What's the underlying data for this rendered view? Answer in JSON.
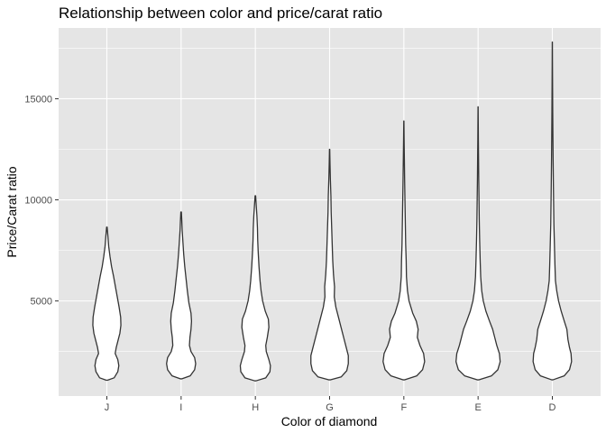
{
  "chart_data": {
    "type": "violin",
    "title": "Relationship between color and price/carat ratio",
    "xlabel": "Color of diamond",
    "ylabel": "Price/Carat ratio",
    "categories": [
      "J",
      "I",
      "H",
      "G",
      "F",
      "E",
      "D"
    ],
    "yticks": [
      5000,
      10000,
      15000
    ],
    "ylim": [
      300,
      18500
    ],
    "grid": true,
    "background": "#e5e5e5",
    "grid_color": "#ffffff",
    "violins": [
      {
        "category": "J",
        "min": 1080,
        "max": 8650,
        "profile": [
          [
            1080,
            0.02
          ],
          [
            1200,
            0.28
          ],
          [
            1500,
            0.42
          ],
          [
            1800,
            0.46
          ],
          [
            2100,
            0.42
          ],
          [
            2400,
            0.32
          ],
          [
            2700,
            0.36
          ],
          [
            3000,
            0.42
          ],
          [
            3400,
            0.5
          ],
          [
            3800,
            0.54
          ],
          [
            4200,
            0.53
          ],
          [
            4700,
            0.47
          ],
          [
            5200,
            0.4
          ],
          [
            5700,
            0.33
          ],
          [
            6200,
            0.26
          ],
          [
            6700,
            0.18
          ],
          [
            7200,
            0.12
          ],
          [
            7700,
            0.07
          ],
          [
            8200,
            0.04
          ],
          [
            8650,
            0.01
          ]
        ]
      },
      {
        "category": "I",
        "min": 1150,
        "max": 9400,
        "profile": [
          [
            1150,
            0.02
          ],
          [
            1300,
            0.35
          ],
          [
            1600,
            0.52
          ],
          [
            1900,
            0.56
          ],
          [
            2200,
            0.52
          ],
          [
            2500,
            0.38
          ],
          [
            2800,
            0.32
          ],
          [
            3200,
            0.34
          ],
          [
            3600,
            0.38
          ],
          [
            4000,
            0.4
          ],
          [
            4400,
            0.38
          ],
          [
            4900,
            0.3
          ],
          [
            5500,
            0.24
          ],
          [
            6100,
            0.19
          ],
          [
            6700,
            0.14
          ],
          [
            7300,
            0.1
          ],
          [
            7900,
            0.07
          ],
          [
            8500,
            0.04
          ],
          [
            9000,
            0.025
          ],
          [
            9400,
            0.01
          ]
        ]
      },
      {
        "category": "H",
        "min": 1050,
        "max": 10200,
        "profile": [
          [
            1050,
            0.02
          ],
          [
            1200,
            0.4
          ],
          [
            1500,
            0.56
          ],
          [
            1800,
            0.58
          ],
          [
            2100,
            0.52
          ],
          [
            2500,
            0.42
          ],
          [
            2800,
            0.4
          ],
          [
            3200,
            0.46
          ],
          [
            3700,
            0.52
          ],
          [
            4100,
            0.5
          ],
          [
            4500,
            0.38
          ],
          [
            5000,
            0.28
          ],
          [
            5500,
            0.22
          ],
          [
            6000,
            0.18
          ],
          [
            6700,
            0.14
          ],
          [
            7400,
            0.11
          ],
          [
            8000,
            0.09
          ],
          [
            8600,
            0.08
          ],
          [
            9200,
            0.06
          ],
          [
            9600,
            0.04
          ],
          [
            10000,
            0.02
          ],
          [
            10200,
            0.01
          ]
        ]
      },
      {
        "category": "G",
        "min": 1100,
        "max": 12500,
        "profile": [
          [
            1100,
            0.02
          ],
          [
            1250,
            0.45
          ],
          [
            1550,
            0.66
          ],
          [
            1900,
            0.72
          ],
          [
            2300,
            0.72
          ],
          [
            2700,
            0.64
          ],
          [
            3200,
            0.54
          ],
          [
            3700,
            0.44
          ],
          [
            4200,
            0.34
          ],
          [
            4700,
            0.24
          ],
          [
            5200,
            0.18
          ],
          [
            5700,
            0.19
          ],
          [
            6300,
            0.15
          ],
          [
            7000,
            0.12
          ],
          [
            7800,
            0.1
          ],
          [
            8600,
            0.08
          ],
          [
            9400,
            0.06
          ],
          [
            10200,
            0.05
          ],
          [
            11000,
            0.03
          ],
          [
            11800,
            0.015
          ],
          [
            12500,
            0.005
          ]
        ]
      },
      {
        "category": "F",
        "min": 1100,
        "max": 13900,
        "profile": [
          [
            1100,
            0.02
          ],
          [
            1300,
            0.5
          ],
          [
            1600,
            0.72
          ],
          [
            2000,
            0.8
          ],
          [
            2400,
            0.76
          ],
          [
            2800,
            0.62
          ],
          [
            3200,
            0.52
          ],
          [
            3600,
            0.55
          ],
          [
            4000,
            0.48
          ],
          [
            4400,
            0.34
          ],
          [
            5000,
            0.2
          ],
          [
            5500,
            0.14
          ],
          [
            6200,
            0.1
          ],
          [
            7000,
            0.09
          ],
          [
            7800,
            0.07
          ],
          [
            8600,
            0.06
          ],
          [
            9400,
            0.05
          ],
          [
            10200,
            0.04
          ],
          [
            11000,
            0.03
          ],
          [
            12000,
            0.02
          ],
          [
            13000,
            0.01
          ],
          [
            13900,
            0.003
          ]
        ]
      },
      {
        "category": "E",
        "min": 1100,
        "max": 14600,
        "profile": [
          [
            1100,
            0.02
          ],
          [
            1300,
            0.52
          ],
          [
            1600,
            0.76
          ],
          [
            2000,
            0.85
          ],
          [
            2400,
            0.82
          ],
          [
            2800,
            0.72
          ],
          [
            3200,
            0.64
          ],
          [
            3600,
            0.56
          ],
          [
            4000,
            0.44
          ],
          [
            4500,
            0.3
          ],
          [
            5000,
            0.2
          ],
          [
            5500,
            0.14
          ],
          [
            6200,
            0.1
          ],
          [
            7000,
            0.08
          ],
          [
            8000,
            0.06
          ],
          [
            9000,
            0.045
          ],
          [
            10000,
            0.035
          ],
          [
            11000,
            0.025
          ],
          [
            12000,
            0.018
          ],
          [
            13000,
            0.01
          ],
          [
            14000,
            0.005
          ],
          [
            14600,
            0.002
          ]
        ]
      },
      {
        "category": "D",
        "min": 1100,
        "max": 17800,
        "profile": [
          [
            1100,
            0.02
          ],
          [
            1300,
            0.46
          ],
          [
            1600,
            0.66
          ],
          [
            2000,
            0.74
          ],
          [
            2400,
            0.72
          ],
          [
            2700,
            0.66
          ],
          [
            3100,
            0.6
          ],
          [
            3600,
            0.56
          ],
          [
            4000,
            0.46
          ],
          [
            4500,
            0.34
          ],
          [
            5000,
            0.24
          ],
          [
            5500,
            0.17
          ],
          [
            6000,
            0.12
          ],
          [
            6800,
            0.1
          ],
          [
            7800,
            0.08
          ],
          [
            8800,
            0.06
          ],
          [
            9800,
            0.05
          ],
          [
            10800,
            0.04
          ],
          [
            12000,
            0.03
          ],
          [
            13200,
            0.022
          ],
          [
            14400,
            0.015
          ],
          [
            15600,
            0.01
          ],
          [
            16800,
            0.005
          ],
          [
            17800,
            0.002
          ]
        ]
      }
    ]
  }
}
